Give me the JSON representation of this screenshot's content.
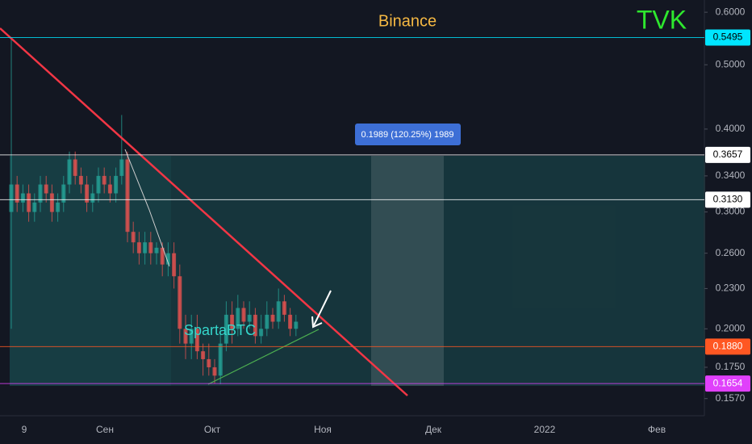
{
  "chart_data": {
    "type": "candlestick",
    "title": "Binance",
    "symbol": "TVK",
    "watermark": "SpartaBTC",
    "annotation": "0.1989 (120.25%) 1989",
    "log_scale": true,
    "ylim": [
      0.15,
      0.626
    ],
    "yticks": [
      {
        "value": 0.6,
        "label": "0.6000"
      },
      {
        "value": 0.5,
        "label": "0.5000"
      },
      {
        "value": 0.4,
        "label": "0.4000"
      },
      {
        "value": 0.34,
        "label": "0.3400"
      },
      {
        "value": 0.3,
        "label": "0.3000"
      },
      {
        "value": 0.26,
        "label": "0.2600"
      },
      {
        "value": 0.23,
        "label": "0.2300"
      },
      {
        "value": 0.2,
        "label": "0.2000"
      },
      {
        "value": 0.175,
        "label": "0.1750"
      },
      {
        "value": 0.157,
        "label": "0.1570"
      }
    ],
    "levels": [
      0.5495,
      0.3657,
      {
        "value": 0.313,
        "label": "0.3130"
      },
      {
        "value": 0.188,
        "label": "0.1880"
      },
      0.1654
    ],
    "level_colors": [
      "#00e5ff",
      "#ffffff",
      "#ffffff",
      "#ff5722",
      "#e040fb"
    ],
    "xlabels": [
      "9",
      "Сен",
      "Окт",
      "Ноя",
      "Дек",
      "2022",
      "Фев"
    ],
    "up_color": "#26a69a",
    "down_color": "#ef5350",
    "open": [
      0.3,
      0.33,
      0.31,
      0.32,
      0.3,
      0.31,
      0.33,
      0.32,
      0.3,
      0.31,
      0.33,
      0.36,
      0.34,
      0.33,
      0.31,
      0.32,
      0.34,
      0.33,
      0.32,
      0.34,
      0.36,
      0.28,
      0.27,
      0.26,
      0.27,
      0.26,
      0.265,
      0.25,
      0.26,
      0.24,
      0.2,
      0.19,
      0.2,
      0.185,
      0.18,
      0.175,
      0.17,
      0.19,
      0.21,
      0.2,
      0.215,
      0.205,
      0.21,
      0.195,
      0.2,
      0.21,
      0.205,
      0.22,
      0.21,
      0.2
    ],
    "high": [
      0.5495,
      0.34,
      0.33,
      0.33,
      0.32,
      0.34,
      0.34,
      0.33,
      0.32,
      0.34,
      0.37,
      0.37,
      0.35,
      0.34,
      0.33,
      0.35,
      0.35,
      0.34,
      0.35,
      0.42,
      0.37,
      0.29,
      0.28,
      0.28,
      0.28,
      0.27,
      0.27,
      0.27,
      0.27,
      0.25,
      0.21,
      0.21,
      0.21,
      0.19,
      0.19,
      0.18,
      0.2,
      0.22,
      0.22,
      0.225,
      0.22,
      0.22,
      0.215,
      0.21,
      0.22,
      0.215,
      0.23,
      0.225,
      0.215,
      0.21
    ],
    "low": [
      0.2,
      0.3,
      0.3,
      0.29,
      0.29,
      0.3,
      0.31,
      0.29,
      0.29,
      0.3,
      0.32,
      0.33,
      0.32,
      0.3,
      0.3,
      0.31,
      0.32,
      0.31,
      0.31,
      0.33,
      0.27,
      0.26,
      0.25,
      0.25,
      0.25,
      0.25,
      0.24,
      0.24,
      0.23,
      0.19,
      0.18,
      0.18,
      0.18,
      0.17,
      0.17,
      0.1654,
      0.165,
      0.185,
      0.19,
      0.195,
      0.2,
      0.2,
      0.19,
      0.19,
      0.195,
      0.2,
      0.2,
      0.205,
      0.195,
      0.195
    ],
    "close": [
      0.33,
      0.31,
      0.32,
      0.3,
      0.31,
      0.33,
      0.32,
      0.3,
      0.31,
      0.33,
      0.36,
      0.34,
      0.33,
      0.31,
      0.32,
      0.34,
      0.33,
      0.32,
      0.34,
      0.36,
      0.28,
      0.27,
      0.26,
      0.27,
      0.26,
      0.265,
      0.25,
      0.26,
      0.24,
      0.2,
      0.19,
      0.2,
      0.185,
      0.18,
      0.175,
      0.17,
      0.19,
      0.21,
      0.2,
      0.215,
      0.205,
      0.21,
      0.195,
      0.2,
      0.21,
      0.205,
      0.22,
      0.21,
      0.2,
      0.205
    ]
  }
}
